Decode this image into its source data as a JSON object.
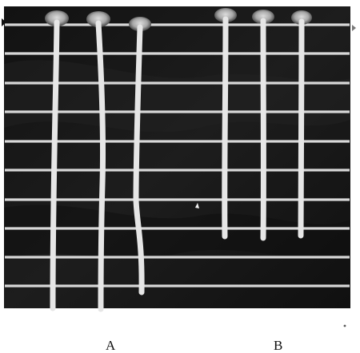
{
  "colors": {
    "plate_background": "#161616",
    "grid_line": "#d8d8d8",
    "growth_line": "#e6e6e6",
    "page_background": "#ffffff"
  },
  "figure": {
    "group_labels": [
      "A",
      "B"
    ],
    "groups": [
      {
        "label": "A",
        "tube_count": 3,
        "relative_growth_lengths": [
          1.0,
          1.0,
          0.95
        ]
      },
      {
        "label": "B",
        "tube_count": 3,
        "relative_growth_lengths": [
          0.73,
          0.75,
          0.74
        ]
      }
    ]
  }
}
